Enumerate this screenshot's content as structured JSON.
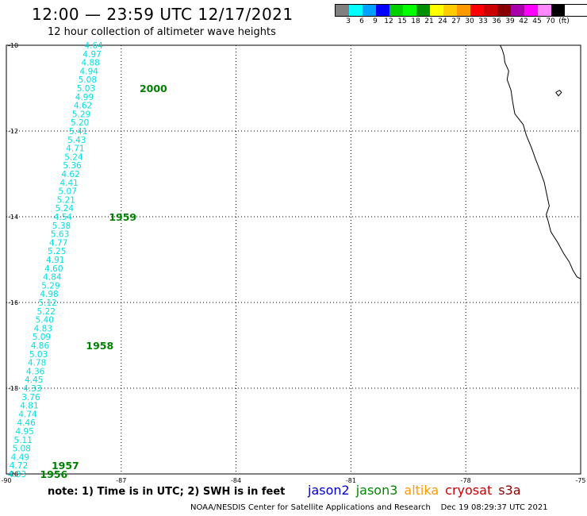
{
  "header": {
    "title": "12:00 — 23:59 UTC 12/17/2021",
    "subtitle": "12 hour collection of altimeter wave heights"
  },
  "legend": {
    "colors": [
      "#808080",
      "#00ffff",
      "#00a0ff",
      "#0000ff",
      "#00d000",
      "#00ff00",
      "#009000",
      "#ffff00",
      "#ffcc00",
      "#ff9900",
      "#ff0000",
      "#cc0000",
      "#880000",
      "#aa00aa",
      "#ff00ff",
      "#ff88ff",
      "#000000"
    ],
    "labels": [
      "3",
      "6",
      "9",
      "12",
      "15",
      "18",
      "21",
      "24",
      "27",
      "30",
      "33",
      "36",
      "39",
      "42",
      "45",
      "70",
      "(ft)"
    ]
  },
  "map": {
    "lon_range": [
      -90,
      -75
    ],
    "lat_range": [
      -20,
      -10
    ],
    "x_ticks": [
      "-90",
      "-87",
      "-84",
      "-81",
      "-78",
      "-75"
    ],
    "y_ticks": [
      "-10",
      "-12",
      "-14",
      "-16",
      "-18",
      "-20"
    ],
    "observation_color": "#00e0e0",
    "time_label_color": "#008000",
    "observations": [
      {
        "lat": -10.0,
        "lon": -87.72,
        "value": "4.64"
      },
      {
        "lat": -10.2,
        "lon": -87.76,
        "value": "4.97"
      },
      {
        "lat": -10.4,
        "lon": -87.8,
        "value": "4.88"
      },
      {
        "lat": -10.6,
        "lon": -87.84,
        "value": "4.94"
      },
      {
        "lat": -10.8,
        "lon": -87.88,
        "value": "5.08"
      },
      {
        "lat": -11.0,
        "lon": -87.92,
        "value": "5.03"
      },
      {
        "lat": -11.2,
        "lon": -87.96,
        "value": "4.99"
      },
      {
        "lat": -11.4,
        "lon": -88.0,
        "value": "4.62"
      },
      {
        "lat": -11.6,
        "lon": -88.04,
        "value": "5.29"
      },
      {
        "lat": -11.8,
        "lon": -88.08,
        "value": "5.20"
      },
      {
        "lat": -12.0,
        "lon": -88.12,
        "value": "5.41"
      },
      {
        "lat": -12.2,
        "lon": -88.16,
        "value": "5.43"
      },
      {
        "lat": -12.4,
        "lon": -88.2,
        "value": "4.71"
      },
      {
        "lat": -12.6,
        "lon": -88.24,
        "value": "5.24"
      },
      {
        "lat": -12.8,
        "lon": -88.28,
        "value": "5.36"
      },
      {
        "lat": -13.0,
        "lon": -88.32,
        "value": "4.62"
      },
      {
        "lat": -13.2,
        "lon": -88.36,
        "value": "4.41"
      },
      {
        "lat": -13.4,
        "lon": -88.4,
        "value": "5.07"
      },
      {
        "lat": -13.6,
        "lon": -88.44,
        "value": "5.21"
      },
      {
        "lat": -13.8,
        "lon": -88.48,
        "value": "5.24"
      },
      {
        "lat": -14.0,
        "lon": -88.52,
        "value": "4.54"
      },
      {
        "lat": -14.2,
        "lon": -88.56,
        "value": "5.38"
      },
      {
        "lat": -14.4,
        "lon": -88.6,
        "value": "5.63"
      },
      {
        "lat": -14.6,
        "lon": -88.64,
        "value": "4.77"
      },
      {
        "lat": -14.8,
        "lon": -88.68,
        "value": "5.25"
      },
      {
        "lat": -15.0,
        "lon": -88.72,
        "value": "4.91"
      },
      {
        "lat": -15.2,
        "lon": -88.76,
        "value": "4.60"
      },
      {
        "lat": -15.4,
        "lon": -88.8,
        "value": "4.84"
      },
      {
        "lat": -15.6,
        "lon": -88.84,
        "value": "5.29"
      },
      {
        "lat": -15.8,
        "lon": -88.88,
        "value": "4.98"
      },
      {
        "lat": -16.0,
        "lon": -88.92,
        "value": "5.12"
      },
      {
        "lat": -16.2,
        "lon": -88.96,
        "value": "5.22"
      },
      {
        "lat": -16.4,
        "lon": -89.0,
        "value": "5.40"
      },
      {
        "lat": -16.6,
        "lon": -89.04,
        "value": "4.83"
      },
      {
        "lat": -16.8,
        "lon": -89.08,
        "value": "5.09"
      },
      {
        "lat": -17.0,
        "lon": -89.12,
        "value": "4.86"
      },
      {
        "lat": -17.2,
        "lon": -89.16,
        "value": "5.03"
      },
      {
        "lat": -17.4,
        "lon": -89.2,
        "value": "4.78"
      },
      {
        "lat": -17.6,
        "lon": -89.24,
        "value": "4.36"
      },
      {
        "lat": -17.8,
        "lon": -89.28,
        "value": "4.45"
      },
      {
        "lat": -18.0,
        "lon": -89.32,
        "value": "4.33"
      },
      {
        "lat": -18.2,
        "lon": -89.36,
        "value": "3.76"
      },
      {
        "lat": -18.4,
        "lon": -89.4,
        "value": "4.81"
      },
      {
        "lat": -18.6,
        "lon": -89.44,
        "value": "4.74"
      },
      {
        "lat": -18.8,
        "lon": -89.48,
        "value": "4.46"
      },
      {
        "lat": -19.0,
        "lon": -89.52,
        "value": "4.95"
      },
      {
        "lat": -19.2,
        "lon": -89.56,
        "value": "5.11"
      },
      {
        "lat": -19.4,
        "lon": -89.6,
        "value": "5.08"
      },
      {
        "lat": -19.6,
        "lon": -89.64,
        "value": "4.49"
      },
      {
        "lat": -19.8,
        "lon": -89.68,
        "value": "4.72"
      },
      {
        "lat": -20.0,
        "lon": -89.72,
        "value": "4.33"
      }
    ],
    "time_labels": [
      {
        "lat": -11.0,
        "lon": -86.52,
        "value": "2000"
      },
      {
        "lat": -14.0,
        "lon": -87.32,
        "value": "1959"
      },
      {
        "lat": -17.0,
        "lon": -87.92,
        "value": "1958"
      },
      {
        "lat": -19.8,
        "lon": -88.82,
        "value": "1957"
      },
      {
        "lat": -20.0,
        "lon": -89.12,
        "value": "1956"
      }
    ],
    "coastline": [
      [
        -77.1,
        -10.0
      ],
      [
        -77.05,
        -10.1
      ],
      [
        -77.0,
        -10.25
      ],
      [
        -76.98,
        -10.4
      ],
      [
        -76.88,
        -10.6
      ],
      [
        -76.92,
        -10.8
      ],
      [
        -76.82,
        -11.05
      ],
      [
        -76.78,
        -11.3
      ],
      [
        -76.72,
        -11.6
      ],
      [
        -76.5,
        -11.85
      ],
      [
        -76.42,
        -12.1
      ],
      [
        -76.28,
        -12.4
      ],
      [
        -76.18,
        -12.65
      ],
      [
        -76.05,
        -12.95
      ],
      [
        -75.95,
        -13.2
      ],
      [
        -75.88,
        -13.5
      ],
      [
        -75.82,
        -13.75
      ],
      [
        -75.9,
        -13.95
      ],
      [
        -75.85,
        -14.1
      ],
      [
        -75.78,
        -14.35
      ],
      [
        -75.6,
        -14.6
      ],
      [
        -75.45,
        -14.85
      ],
      [
        -75.3,
        -15.05
      ],
      [
        -75.2,
        -15.25
      ],
      [
        -75.1,
        -15.4
      ],
      [
        -75.0,
        -15.45
      ]
    ],
    "island": [
      [
        -75.65,
        -11.1
      ],
      [
        -75.55,
        -11.05
      ],
      [
        -75.5,
        -11.1
      ],
      [
        -75.58,
        -11.18
      ],
      [
        -75.65,
        -11.1
      ]
    ]
  },
  "footer": {
    "note": "note: 1) Time is in UTC; 2) SWH is in feet",
    "satellites": [
      {
        "name": "jason2",
        "color": "#0000cc"
      },
      {
        "name": "jason3",
        "color": "#008800"
      },
      {
        "name": "altika",
        "color": "#ff9900"
      },
      {
        "name": "cryosat",
        "color": "#cc0000"
      },
      {
        "name": "s3a",
        "color": "#880000"
      }
    ],
    "credit": "NOAA/NESDIS Center for Satellite Applications and Research",
    "timestamp": "Dec 19 08:29:37 UTC 2021"
  }
}
